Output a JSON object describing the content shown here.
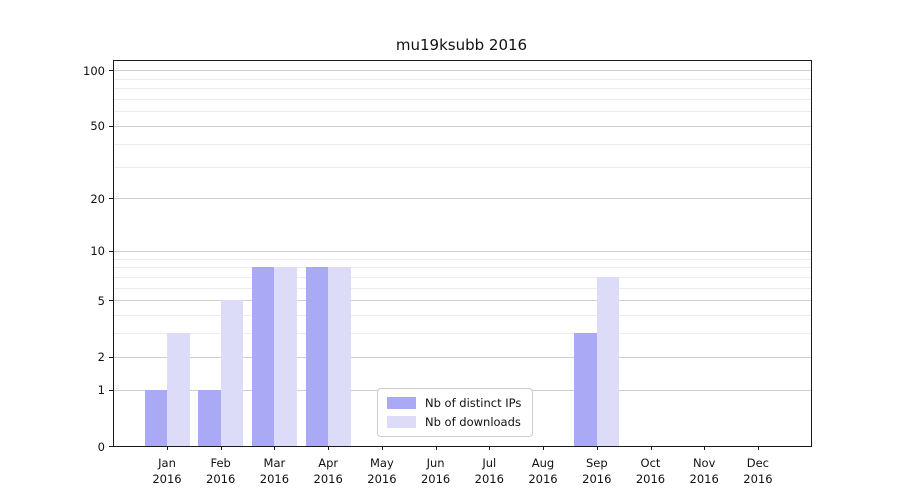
{
  "title": "mu19ksubb 2016",
  "chart_data": {
    "type": "bar",
    "title": "mu19ksubb 2016",
    "categories": [
      "Jan",
      "Feb",
      "Mar",
      "Apr",
      "May",
      "Jun",
      "Jul",
      "Aug",
      "Sep",
      "Oct",
      "Nov",
      "Dec"
    ],
    "x_year_label": "2016",
    "series": [
      {
        "name": "Nb of distinct IPs",
        "color": "#a9a9f6",
        "values": [
          1,
          1,
          8,
          8,
          0,
          0,
          0,
          0,
          3,
          0,
          0,
          0
        ]
      },
      {
        "name": "Nb of downloads",
        "color": "#dcdcf8",
        "values": [
          3,
          5,
          8,
          8,
          0,
          0,
          0,
          0,
          7,
          0,
          0,
          0
        ]
      }
    ],
    "y_axis": {
      "scale": "log1p",
      "ticks": [
        0,
        1,
        2,
        5,
        10,
        20,
        50,
        100
      ],
      "minor_gridlines": [
        3,
        4,
        6,
        7,
        8,
        9,
        30,
        40,
        60,
        70,
        80,
        90
      ],
      "ymax": 112
    },
    "grid": true,
    "legend_position": "lower center"
  },
  "colors": {
    "bar_distinct_ips": "#a9a9f6",
    "bar_downloads": "#dcdcf8",
    "major_grid": "#cfcfcf",
    "minor_grid": "#ececec",
    "axis": "#1a1a1a",
    "background": "#ffffff",
    "legend_border": "#cccccc"
  }
}
